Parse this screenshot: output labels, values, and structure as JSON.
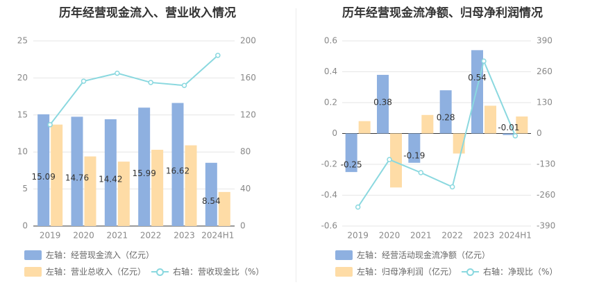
{
  "colors": {
    "bar_blue": "#8eb0e0",
    "bar_orange": "#fedca6",
    "line_cyan": "#8ad8df",
    "grid": "#e6e6e6",
    "axis_text": "#888888"
  },
  "chart_data": [
    {
      "type": "bar",
      "title": "历年经营现金流入、营业收入情况",
      "categories": [
        "2019",
        "2020",
        "2021",
        "2022",
        "2023",
        "2024H1"
      ],
      "left_axis": {
        "ticks": [
          "0",
          "5",
          "10",
          "15",
          "20",
          "25"
        ],
        "ylim": [
          0,
          25
        ]
      },
      "right_axis": {
        "ticks": [
          "0",
          "40",
          "80",
          "120",
          "160",
          "200"
        ],
        "ylim": [
          0,
          200
        ]
      },
      "series": [
        {
          "name": "左轴：经营现金流入（亿元）",
          "type": "bar",
          "axis": "left",
          "color": "#8eb0e0",
          "values": [
            15.09,
            14.76,
            14.42,
            15.99,
            16.62,
            8.54
          ],
          "labels": [
            "15.09",
            "14.76",
            "14.42",
            "15.99",
            "16.62",
            "8.54"
          ]
        },
        {
          "name": "左轴：营业总收入（亿元）",
          "type": "bar",
          "axis": "left",
          "color": "#fedca6",
          "values": [
            13.7,
            9.4,
            8.7,
            10.3,
            10.9,
            4.6
          ]
        },
        {
          "name": "右轴：营收现金比（%）",
          "type": "line",
          "axis": "right",
          "color": "#8ad8df",
          "values": [
            109.5,
            156.5,
            165.1,
            155.1,
            151.9,
            184.4
          ]
        }
      ],
      "grid": true,
      "legend_position": "bottom"
    },
    {
      "type": "bar",
      "title": "历年经营现金流净额、归母净利润情况",
      "categories": [
        "2019",
        "2020",
        "2021",
        "2022",
        "2023",
        "2024H1"
      ],
      "left_axis": {
        "ticks": [
          "-0.6",
          "-0.4",
          "-0.2",
          "0",
          "0.2",
          "0.4",
          "0.6"
        ],
        "ylim": [
          -0.6,
          0.6
        ]
      },
      "right_axis": {
        "ticks": [
          "-390",
          "-260",
          "-130",
          "0",
          "130",
          "260",
          "390"
        ],
        "ylim": [
          -390,
          390
        ]
      },
      "series": [
        {
          "name": "左轴：经营活动现金流净额（亿元）",
          "type": "bar",
          "axis": "left",
          "color": "#8eb0e0",
          "values": [
            -0.25,
            0.38,
            -0.19,
            0.28,
            0.54,
            -0.01
          ],
          "labels": [
            "-0.25",
            "0.38",
            "-0.19",
            "0.28",
            "0.54",
            "-0.01"
          ]
        },
        {
          "name": "左轴：归母净利润（亿元）",
          "type": "bar",
          "axis": "left",
          "color": "#fedca6",
          "values": [
            0.08,
            -0.35,
            0.12,
            -0.13,
            0.18,
            0.11
          ]
        },
        {
          "name": "右轴：净现比（%）",
          "type": "line",
          "axis": "right",
          "color": "#8ad8df",
          "values": [
            -310,
            -110,
            -165,
            -225,
            305,
            -10
          ]
        }
      ],
      "grid": true,
      "legend_position": "bottom"
    }
  ]
}
